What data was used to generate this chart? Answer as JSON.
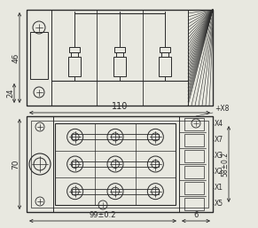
{
  "bg_color": "#e8e8e0",
  "line_color": "#2a2a2a",
  "dim_color": "#2a2a2a",
  "fig_width": 2.91,
  "fig_height": 2.57,
  "dpi": 100,
  "labels": {
    "dim_46": "46",
    "dim_24": "24",
    "dim_110": "110",
    "dim_70": "70",
    "dim_99": "99±0.2",
    "dim_6": "6",
    "dim_58": "58±0.2",
    "x8": "+X8",
    "x4": "X4",
    "x7": "X7",
    "x3": "X3",
    "x2": "X2",
    "x1": "X1",
    "x5": "X5"
  }
}
